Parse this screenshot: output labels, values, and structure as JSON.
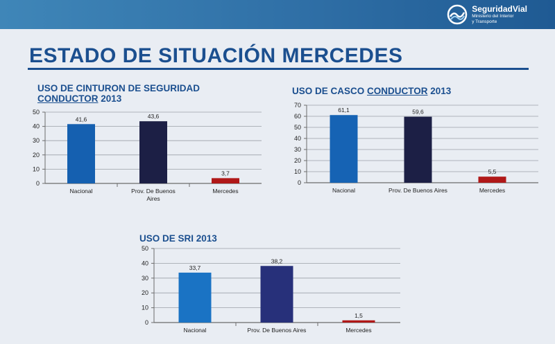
{
  "header": {
    "brand_name": "SeguridadVial",
    "brand_sub_1": "Ministerio del Interior",
    "brand_sub_2": "y Transporte",
    "bar_color": "#2f6fa6"
  },
  "page_title": "ESTADO DE SITUACIÓN MERCEDES",
  "chart_data": [
    {
      "type": "bar",
      "title_line1": "USO DE CINTURON DE SEGURIDAD",
      "title_line2_underlined": "CONDUCTOR",
      "title_line2_rest": " 2013",
      "categories": [
        "Nacional",
        "Prov. De Buenos Aires",
        "Mercedes"
      ],
      "category_lines": [
        [
          "Nacional"
        ],
        [
          "Prov. De Buenos",
          "Aires"
        ],
        [
          "Mercedes"
        ]
      ],
      "values": [
        41.6,
        43.6,
        3.7
      ],
      "value_labels": [
        "41,6",
        "43,6",
        "3,7"
      ],
      "colors": [
        "#1560b0",
        "#1c1f45",
        "#b01818"
      ],
      "ylim": [
        0,
        50
      ],
      "yticks": [
        0,
        10,
        20,
        30,
        40,
        50
      ],
      "grid": true
    },
    {
      "type": "bar",
      "title_pre": "USO DE CASCO ",
      "title_underlined": "CONDUCTOR",
      "title_post": " 2013",
      "categories": [
        "Nacional",
        "Prov. De Buenos Aires",
        "Mercedes"
      ],
      "category_lines": [
        [
          "Nacional"
        ],
        [
          "Prov. De Buenos Aires"
        ],
        [
          "Mercedes"
        ]
      ],
      "values": [
        61.1,
        59.6,
        5.5
      ],
      "value_labels": [
        "61,1",
        "59,6",
        "5,5"
      ],
      "colors": [
        "#1663b4",
        "#1c1f45",
        "#b01818"
      ],
      "ylim": [
        0,
        70
      ],
      "yticks": [
        0,
        10,
        20,
        30,
        40,
        50,
        60,
        70
      ],
      "grid": true
    },
    {
      "type": "bar",
      "title": "USO DE SRI 2013",
      "categories": [
        "Nacional",
        "Prov. De Buenos Aires",
        "Mercedes"
      ],
      "category_lines": [
        [
          "Nacional"
        ],
        [
          "Prov. De Buenos Aires"
        ],
        [
          "Mercedes"
        ]
      ],
      "values": [
        33.7,
        38.2,
        1.5
      ],
      "value_labels": [
        "33,7",
        "38,2",
        "1,5"
      ],
      "colors": [
        "#1a73c4",
        "#27307a",
        "#b01818"
      ],
      "ylim": [
        0,
        50
      ],
      "yticks": [
        0,
        10,
        20,
        30,
        40,
        50
      ],
      "grid": true
    }
  ]
}
